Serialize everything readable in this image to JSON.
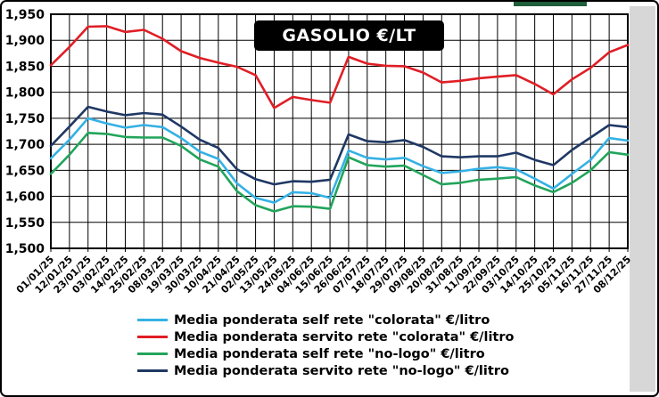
{
  "window": {
    "top_bar_color": "#1e5e3a",
    "right_gutter_color": "#d7d7d7",
    "background": "#ffffff",
    "border_color": "#000000"
  },
  "chart_data": {
    "type": "line",
    "title": "GASOLIO €/LT",
    "grid": true,
    "legend_position": "bottom",
    "x_axis": {
      "tick_label_rotation": -45,
      "categories": [
        "01/01/25",
        "12/01/25",
        "23/01/25",
        "03/02/25",
        "14/02/25",
        "25/02/25",
        "08/03/25",
        "19/03/25",
        "30/03/25",
        "10/04/25",
        "21/04/25",
        "02/05/25",
        "13/05/25",
        "24/05/25",
        "04/06/25",
        "15/06/25",
        "26/06/25",
        "07/07/25",
        "18/07/25",
        "29/07/25",
        "09/08/25",
        "20/08/25",
        "31/08/25",
        "11/09/25",
        "22/09/25",
        "03/10/25",
        "14/10/25",
        "25/10/25",
        "05/11/25",
        "16/11/25",
        "27/11/25",
        "08/12/25"
      ]
    },
    "y_axis": {
      "min": 1500,
      "max": 1950,
      "step": 50,
      "label_format": "thousands-comma"
    },
    "series": [
      {
        "name": "Media ponderata self rete \"colorata\" €/litro",
        "color": "#35b1e4",
        "values": [
          1673,
          1709,
          1750,
          1740,
          1732,
          1737,
          1733,
          1712,
          1686,
          1672,
          1625,
          1597,
          1588,
          1608,
          1606,
          1597,
          1688,
          1674,
          1671,
          1674,
          1658,
          1645,
          1648,
          1653,
          1656,
          1652,
          1634,
          1615,
          1643,
          1670,
          1712,
          1707
        ]
      },
      {
        "name": "Media ponderata servito rete \"colorata\" €/litro",
        "color": "#e01e25",
        "values": [
          1852,
          1887,
          1926,
          1927,
          1916,
          1920,
          1903,
          1879,
          1866,
          1857,
          1849,
          1833,
          1770,
          1791,
          1785,
          1780,
          1868,
          1855,
          1851,
          1850,
          1838,
          1819,
          1822,
          1827,
          1830,
          1833,
          1816,
          1796,
          1825,
          1847,
          1877,
          1891
        ]
      },
      {
        "name": "Media ponderata self rete \"no-logo\" €/litro",
        "color": "#22a45b",
        "values": [
          1643,
          1680,
          1722,
          1720,
          1714,
          1713,
          1713,
          1697,
          1671,
          1657,
          1610,
          1583,
          1571,
          1581,
          1580,
          1576,
          1675,
          1660,
          1657,
          1659,
          1641,
          1623,
          1626,
          1632,
          1634,
          1637,
          1621,
          1608,
          1626,
          1650,
          1685,
          1680
        ]
      },
      {
        "name": "Media ponderata servito rete \"no-logo\" €/litro",
        "color": "#1f3864",
        "values": [
          1697,
          1734,
          1772,
          1763,
          1756,
          1760,
          1757,
          1734,
          1709,
          1693,
          1652,
          1633,
          1623,
          1629,
          1628,
          1632,
          1719,
          1706,
          1704,
          1708,
          1695,
          1677,
          1675,
          1677,
          1677,
          1684,
          1670,
          1660,
          1689,
          1713,
          1737,
          1733
        ]
      }
    ]
  }
}
